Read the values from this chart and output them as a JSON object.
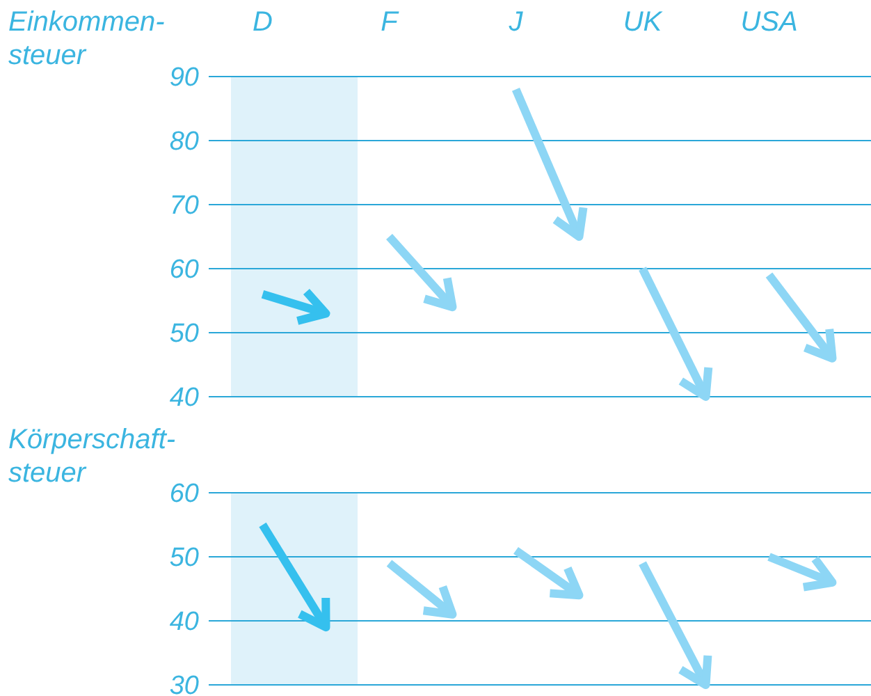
{
  "chart_data": [
    {
      "type": "line",
      "title": "Einkommen-\nsteuer",
      "categories": [
        "D",
        null,
        "F",
        null,
        "J",
        null,
        "UK",
        null,
        "USA",
        null
      ],
      "ylim": [
        40,
        90
      ],
      "yticks": [
        40,
        50,
        60,
        70,
        80,
        90
      ],
      "grid": "y",
      "series": [
        {
          "color": "#35c0ee",
          "values": [
            56,
            53,
            null,
            null,
            null,
            null,
            null,
            null,
            null,
            null
          ]
        },
        {
          "color": "#8dd6f5",
          "values": [
            null,
            null,
            65,
            54,
            null,
            null,
            null,
            null,
            null,
            null
          ]
        },
        {
          "color": "#8dd6f5",
          "values": [
            null,
            null,
            null,
            null,
            88,
            65,
            null,
            null,
            null,
            null
          ]
        },
        {
          "color": "#8dd6f5",
          "values": [
            null,
            null,
            null,
            null,
            null,
            null,
            60,
            40,
            null,
            null
          ]
        },
        {
          "color": "#8dd6f5",
          "values": [
            null,
            null,
            null,
            null,
            null,
            null,
            null,
            null,
            59,
            46
          ]
        }
      ]
    },
    {
      "type": "line",
      "title": "Körperschaft-\nsteuer",
      "categories": [
        null,
        null,
        null,
        null,
        null,
        null,
        null,
        null,
        null,
        null
      ],
      "ylim": [
        30,
        60
      ],
      "yticks": [
        30,
        40,
        50,
        60
      ],
      "grid": "y",
      "tick_labels": "y",
      "series": [
        {
          "color": "#35c0ee",
          "values": [
            55,
            39,
            null,
            null,
            null,
            null,
            null,
            null,
            null,
            null
          ]
        },
        {
          "color": "#8dd6f5",
          "values": [
            null,
            null,
            49,
            41,
            null,
            null,
            null,
            null,
            null,
            null
          ]
        },
        {
          "color": "#8dd6f5",
          "values": [
            null,
            null,
            null,
            null,
            51,
            44,
            null,
            null,
            null,
            null
          ]
        },
        {
          "color": "#8dd6f5",
          "values": [
            null,
            null,
            null,
            null,
            null,
            null,
            49,
            30,
            null,
            null
          ]
        },
        {
          "color": "#8dd6f5",
          "values": [
            null,
            null,
            null,
            null,
            null,
            null,
            null,
            null,
            50,
            46
          ]
        }
      ]
    }
  ]
}
